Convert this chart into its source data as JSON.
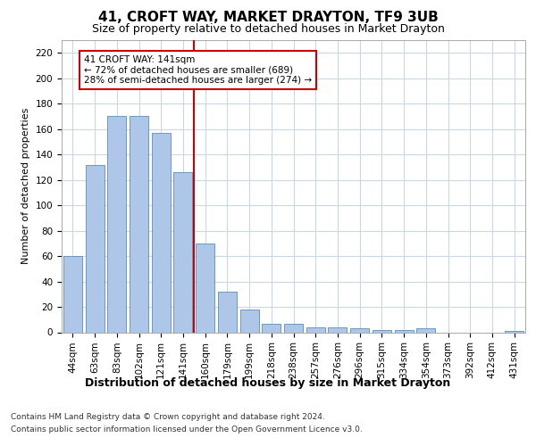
{
  "title1": "41, CROFT WAY, MARKET DRAYTON, TF9 3UB",
  "title2": "Size of property relative to detached houses in Market Drayton",
  "xlabel": "Distribution of detached houses by size in Market Drayton",
  "ylabel": "Number of detached properties",
  "categories": [
    "44sqm",
    "63sqm",
    "83sqm",
    "102sqm",
    "121sqm",
    "141sqm",
    "160sqm",
    "179sqm",
    "199sqm",
    "218sqm",
    "238sqm",
    "257sqm",
    "276sqm",
    "296sqm",
    "315sqm",
    "334sqm",
    "354sqm",
    "373sqm",
    "392sqm",
    "412sqm",
    "431sqm"
  ],
  "values": [
    60,
    132,
    170,
    170,
    157,
    126,
    70,
    32,
    18,
    7,
    7,
    4,
    4,
    3,
    2,
    2,
    3,
    0,
    0,
    0,
    1
  ],
  "bar_color": "#aec6e8",
  "bar_edge_color": "#5b8db8",
  "vline_color": "#cc0000",
  "annotation_text": "41 CROFT WAY: 141sqm\n← 72% of detached houses are smaller (689)\n28% of semi-detached houses are larger (274) →",
  "annotation_box_color": "#cc0000",
  "ylim": [
    0,
    230
  ],
  "yticks": [
    0,
    20,
    40,
    60,
    80,
    100,
    120,
    140,
    160,
    180,
    200,
    220
  ],
  "footer1": "Contains HM Land Registry data © Crown copyright and database right 2024.",
  "footer2": "Contains public sector information licensed under the Open Government Licence v3.0.",
  "bg_color": "#ffffff",
  "grid_color": "#c8d8e8",
  "title1_fontsize": 11,
  "title2_fontsize": 9,
  "ylabel_fontsize": 8,
  "xlabel_fontsize": 9,
  "tick_fontsize": 7.5,
  "footer_fontsize": 6.5
}
